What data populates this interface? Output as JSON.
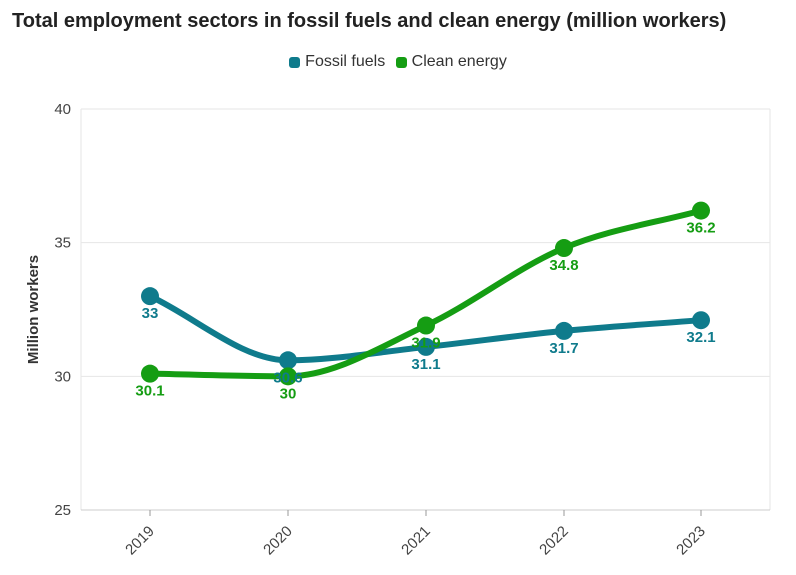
{
  "chart_data": {
    "type": "line",
    "title": "Total employment sectors in fossil fuels and clean energy (million workers)",
    "xlabel": "",
    "ylabel": "Million workers",
    "categories": [
      "2019",
      "2020",
      "2021",
      "2022",
      "2023"
    ],
    "ylim": [
      25,
      40
    ],
    "yticks": [
      "25",
      "30",
      "35",
      "40"
    ],
    "grid": true,
    "legend_position": "top-center",
    "series": [
      {
        "name": "Fossil fuels",
        "color": "#0f7b8c",
        "values": [
          33,
          30.6,
          31.1,
          31.7,
          32.1
        ],
        "labels": [
          "33",
          "30.6",
          "31.1",
          "31.7",
          "32.1"
        ]
      },
      {
        "name": "Clean energy",
        "color": "#159d13",
        "values": [
          30.1,
          30,
          31.9,
          34.8,
          36.2
        ],
        "labels": [
          "30.1",
          "30",
          "31.9",
          "34.8",
          "36.2"
        ]
      }
    ]
  }
}
